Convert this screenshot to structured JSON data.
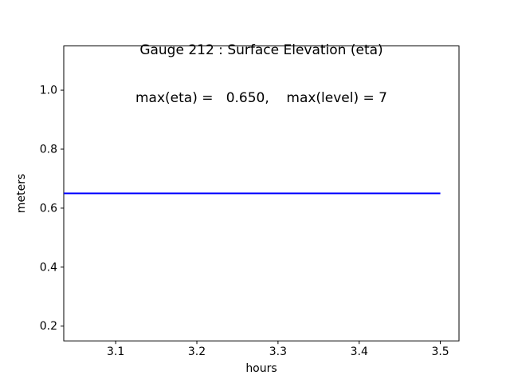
{
  "figure": {
    "background": "#ffffff",
    "spine_color": "#000000"
  },
  "chart_data": {
    "type": "line",
    "title": "Gauge 212 : Surface Elevation (eta)",
    "subtitle": "max(eta) =   0.650,    max(level) = 7",
    "xlabel": "hours",
    "ylabel": "meters",
    "xlim": [
      3.036,
      3.523
    ],
    "ylim": [
      0.15,
      1.15
    ],
    "xticks": [
      3.1,
      3.2,
      3.3,
      3.4,
      3.5
    ],
    "xtick_labels": [
      "3.1",
      "3.2",
      "3.3",
      "3.4",
      "3.5"
    ],
    "yticks": [
      0.2,
      0.4,
      0.6,
      0.8,
      1.0
    ],
    "ytick_labels": [
      "0.2",
      "0.4",
      "0.6",
      "0.8",
      "1.0"
    ],
    "grid": false,
    "legend": null,
    "series": [
      {
        "name": "eta",
        "color": "#0000ff",
        "line_width": 2,
        "x": [
          3.036,
          3.5
        ],
        "y": [
          0.65,
          0.65
        ]
      }
    ],
    "readouts": {
      "gauge_number": "212",
      "max_eta": "0.650",
      "max_level": "7"
    }
  }
}
